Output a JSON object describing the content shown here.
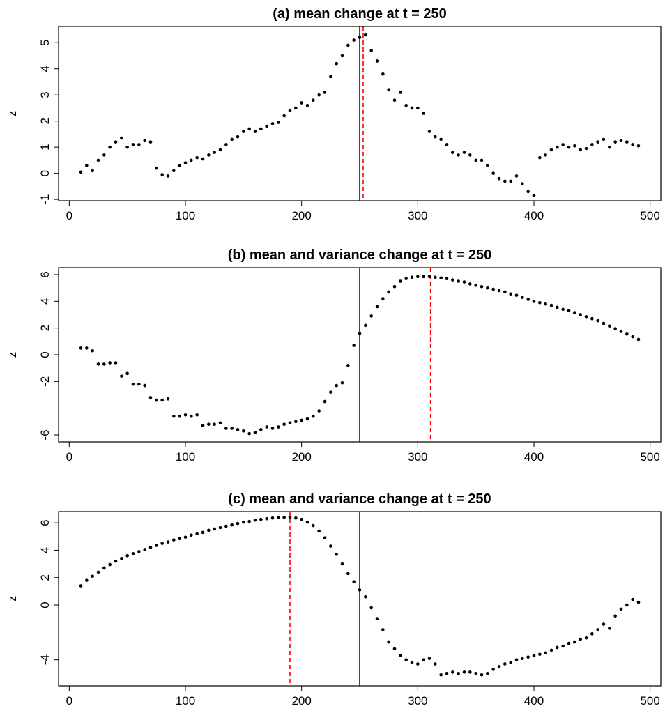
{
  "chart_data": [
    {
      "type": "scatter",
      "title": "(a) mean change at t = 250",
      "ylabel": "z",
      "color": "#000000",
      "x": [
        10,
        15,
        20,
        25,
        30,
        35,
        40,
        45,
        50,
        55,
        60,
        65,
        70,
        75,
        80,
        85,
        90,
        95,
        100,
        105,
        110,
        115,
        120,
        125,
        130,
        135,
        140,
        145,
        150,
        155,
        160,
        165,
        170,
        175,
        180,
        185,
        190,
        195,
        200,
        205,
        210,
        215,
        220,
        225,
        230,
        235,
        240,
        245,
        250,
        255,
        260,
        265,
        270,
        275,
        280,
        285,
        290,
        295,
        300,
        305,
        310,
        315,
        320,
        325,
        330,
        335,
        340,
        345,
        350,
        355,
        360,
        365,
        370,
        375,
        380,
        385,
        390,
        395,
        400,
        405,
        410,
        415,
        420,
        425,
        430,
        435,
        440,
        445,
        450,
        455,
        460,
        465,
        470,
        475,
        480,
        485,
        490
      ],
      "values": [
        0.05,
        0.3,
        0.1,
        0.5,
        0.7,
        1.0,
        1.2,
        1.35,
        1.0,
        1.1,
        1.1,
        1.25,
        1.2,
        0.2,
        -0.05,
        -0.1,
        0.1,
        0.3,
        0.4,
        0.5,
        0.6,
        0.55,
        0.7,
        0.8,
        0.9,
        1.1,
        1.3,
        1.4,
        1.6,
        1.7,
        1.6,
        1.7,
        1.8,
        1.9,
        1.95,
        2.2,
        2.4,
        2.5,
        2.7,
        2.6,
        2.8,
        3.0,
        3.1,
        3.7,
        4.2,
        4.5,
        4.9,
        5.1,
        5.2,
        5.3,
        4.7,
        4.3,
        3.8,
        3.2,
        2.8,
        3.1,
        2.6,
        2.5,
        2.5,
        2.3,
        1.6,
        1.4,
        1.3,
        1.1,
        0.8,
        0.7,
        0.8,
        0.7,
        0.5,
        0.5,
        0.3,
        0.0,
        -0.2,
        -0.3,
        -0.3,
        -0.1,
        -0.4,
        -0.7,
        -0.85,
        0.6,
        0.7,
        0.9,
        1.0,
        1.1,
        1.0,
        1.05,
        0.9,
        0.95,
        1.1,
        1.2,
        1.3,
        1.0,
        1.2,
        1.25,
        1.2,
        1.1,
        1.05
      ],
      "xlim": [
        -9.2,
        509.2
      ],
      "ylim": [
        -1.05,
        5.62
      ],
      "xticks": [
        0,
        100,
        200,
        300,
        400,
        500
      ],
      "yticks": [
        -1,
        0,
        1,
        2,
        3,
        4,
        5
      ],
      "vlines": [
        {
          "x": 250,
          "color": "#0000cc",
          "style": "solid"
        },
        {
          "x": 253,
          "color": "#ff0000",
          "style": "dashed"
        }
      ]
    },
    {
      "type": "scatter",
      "title": "(b) mean and variance change at t = 250",
      "ylabel": "z",
      "color": "#000000",
      "x": [
        10,
        15,
        20,
        25,
        30,
        35,
        40,
        45,
        50,
        55,
        60,
        65,
        70,
        75,
        80,
        85,
        90,
        95,
        100,
        105,
        110,
        115,
        120,
        125,
        130,
        135,
        140,
        145,
        150,
        155,
        160,
        165,
        170,
        175,
        180,
        185,
        190,
        195,
        200,
        205,
        210,
        215,
        220,
        225,
        230,
        235,
        240,
        245,
        250,
        255,
        260,
        265,
        270,
        275,
        280,
        285,
        290,
        295,
        300,
        305,
        310,
        315,
        320,
        325,
        330,
        335,
        340,
        345,
        350,
        355,
        360,
        365,
        370,
        375,
        380,
        385,
        390,
        395,
        400,
        405,
        410,
        415,
        420,
        425,
        430,
        435,
        440,
        445,
        450,
        455,
        460,
        465,
        470,
        475,
        480,
        485,
        490
      ],
      "values": [
        0.5,
        0.5,
        0.3,
        -0.7,
        -0.7,
        -0.6,
        -0.6,
        -1.6,
        -1.4,
        -2.2,
        -2.2,
        -2.3,
        -3.2,
        -3.4,
        -3.4,
        -3.3,
        -4.6,
        -4.6,
        -4.5,
        -4.6,
        -4.5,
        -5.3,
        -5.2,
        -5.2,
        -5.1,
        -5.5,
        -5.5,
        -5.6,
        -5.7,
        -5.9,
        -5.8,
        -5.6,
        -5.4,
        -5.5,
        -5.4,
        -5.2,
        -5.1,
        -5.0,
        -4.9,
        -4.8,
        -4.6,
        -4.2,
        -3.5,
        -2.8,
        -2.3,
        -2.1,
        -0.8,
        0.7,
        1.6,
        2.2,
        2.9,
        3.6,
        4.2,
        4.7,
        5.1,
        5.5,
        5.7,
        5.8,
        5.85,
        5.85,
        5.85,
        5.8,
        5.75,
        5.7,
        5.6,
        5.5,
        5.45,
        5.3,
        5.2,
        5.1,
        5.0,
        4.9,
        4.8,
        4.7,
        4.55,
        4.45,
        4.3,
        4.15,
        4.0,
        3.9,
        3.8,
        3.7,
        3.55,
        3.4,
        3.3,
        3.15,
        3.0,
        2.85,
        2.7,
        2.55,
        2.35,
        2.15,
        1.95,
        1.75,
        1.55,
        1.35,
        1.15
      ],
      "xlim": [
        -9.2,
        509.2
      ],
      "ylim": [
        -6.52,
        6.52
      ],
      "xticks": [
        0,
        100,
        200,
        300,
        400,
        500
      ],
      "yticks": [
        -6,
        -2,
        0,
        2,
        4,
        6
      ],
      "vlines": [
        {
          "x": 250,
          "color": "#0000cc",
          "style": "solid"
        },
        {
          "x": 311,
          "color": "#ff0000",
          "style": "dashed"
        }
      ]
    },
    {
      "type": "scatter",
      "title": "(c) mean and variance change at t = 250",
      "ylabel": "z",
      "color": "#000000",
      "x": [
        10,
        15,
        20,
        25,
        30,
        35,
        40,
        45,
        50,
        55,
        60,
        65,
        70,
        75,
        80,
        85,
        90,
        95,
        100,
        105,
        110,
        115,
        120,
        125,
        130,
        135,
        140,
        145,
        150,
        155,
        160,
        165,
        170,
        175,
        180,
        185,
        190,
        195,
        200,
        205,
        210,
        215,
        220,
        225,
        230,
        235,
        240,
        245,
        250,
        255,
        260,
        265,
        270,
        275,
        280,
        285,
        290,
        295,
        300,
        305,
        310,
        315,
        320,
        325,
        330,
        335,
        340,
        345,
        350,
        355,
        360,
        365,
        370,
        375,
        380,
        385,
        390,
        395,
        400,
        405,
        410,
        415,
        420,
        425,
        430,
        435,
        440,
        445,
        450,
        455,
        460,
        465,
        470,
        475,
        480,
        485,
        490
      ],
      "values": [
        1.4,
        1.8,
        2.1,
        2.4,
        2.7,
        2.95,
        3.2,
        3.4,
        3.6,
        3.75,
        3.9,
        4.05,
        4.2,
        4.35,
        4.5,
        4.6,
        4.75,
        4.85,
        4.95,
        5.1,
        5.2,
        5.3,
        5.45,
        5.55,
        5.65,
        5.75,
        5.85,
        5.95,
        6.05,
        6.1,
        6.2,
        6.25,
        6.3,
        6.35,
        6.4,
        6.4,
        6.4,
        6.35,
        6.25,
        6.05,
        5.8,
        5.4,
        4.9,
        4.3,
        3.7,
        3.0,
        2.3,
        1.7,
        1.1,
        0.6,
        -0.2,
        -1.0,
        -1.8,
        -2.7,
        -3.2,
        -3.7,
        -4.0,
        -4.2,
        -4.3,
        -4.0,
        -3.9,
        -4.3,
        -5.1,
        -5.0,
        -4.9,
        -5.0,
        -4.9,
        -4.9,
        -5.0,
        -5.1,
        -5.0,
        -4.7,
        -4.5,
        -4.3,
        -4.2,
        -4.0,
        -3.9,
        -3.8,
        -3.7,
        -3.6,
        -3.5,
        -3.3,
        -3.1,
        -3.0,
        -2.8,
        -2.7,
        -2.5,
        -2.4,
        -2.1,
        -1.8,
        -1.4,
        -1.7,
        -0.8,
        -0.3,
        0.0,
        0.4,
        0.2
      ],
      "xlim": [
        -9.2,
        509.2
      ],
      "ylim": [
        -5.9,
        6.82
      ],
      "xticks": [
        0,
        100,
        200,
        300,
        400,
        500
      ],
      "yticks": [
        -4,
        0,
        2,
        4,
        6
      ],
      "vlines": [
        {
          "x": 250,
          "color": "#0000cc",
          "style": "solid"
        },
        {
          "x": 190,
          "color": "#ff0000",
          "style": "dashed"
        }
      ]
    }
  ]
}
